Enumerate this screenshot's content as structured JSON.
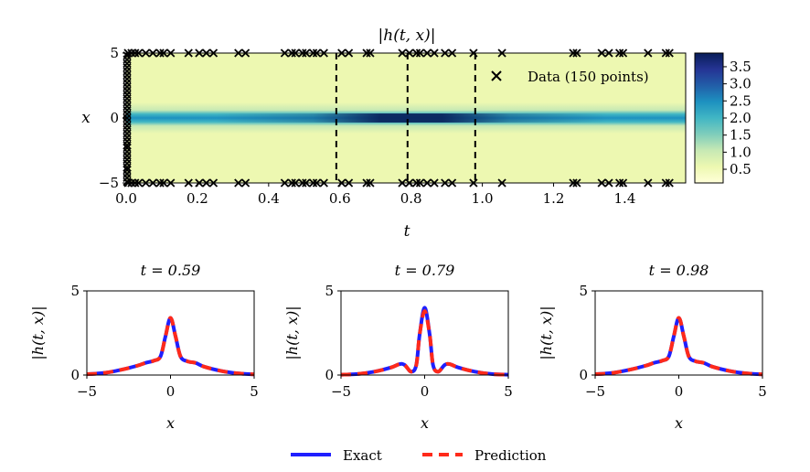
{
  "colors": {
    "exact": "#1f1fff",
    "prediction": "#ff2a1a",
    "cmap": [
      "#ffffd9",
      "#edf8b1",
      "#c7e9b4",
      "#7fcdbb",
      "#41b6c4",
      "#1d91c0",
      "#225ea8",
      "#253494",
      "#081d58"
    ]
  },
  "chart_data": [
    {
      "type": "heatmap",
      "title": "|h(t, x)|",
      "xlabel": "t",
      "ylabel": "x",
      "xlim": [
        0.0,
        1.5708
      ],
      "ylim": [
        -5,
        5
      ],
      "xticks": [
        "0.0",
        "0.2",
        "0.4",
        "0.6",
        "0.8",
        "1.0",
        "1.2",
        "1.4"
      ],
      "xtick_values": [
        0.0,
        0.2,
        0.4,
        0.6,
        0.8,
        1.0,
        1.2,
        1.4
      ],
      "yticks": [
        "−5",
        "0",
        "5"
      ],
      "ytick_values": [
        -5,
        0,
        5
      ],
      "colorbar": {
        "range": [
          0.1,
          3.9
        ],
        "ticks": [
          "0.5",
          "1.0",
          "1.5",
          "2.0",
          "2.5",
          "3.0",
          "3.5"
        ],
        "tick_values": [
          0.5,
          1.0,
          1.5,
          2.0,
          2.5,
          3.0,
          3.5
        ]
      },
      "slices_t": [
        0.59,
        0.79,
        0.98
      ],
      "legend": "Data (150 points)",
      "legend_position": "top-right",
      "data_points": {
        "initial_x": [
          -4.9,
          -4.6,
          -4.3,
          -4.0,
          -3.8,
          -3.5,
          -3.2,
          -2.9,
          -2.6,
          -2.3,
          -2.1,
          -1.8,
          -1.5,
          -1.2,
          -0.9,
          -0.6,
          -0.3,
          0.0,
          0.3,
          0.6,
          0.9,
          1.2,
          1.5,
          1.8,
          2.1,
          2.4,
          2.7,
          3.0,
          3.3,
          3.6,
          3.9,
          4.2,
          4.5,
          4.8
        ],
        "boundary_t": [
          0.0,
          0.01,
          0.02,
          0.03,
          0.05,
          0.07,
          0.09,
          0.1,
          0.12,
          0.17,
          0.2,
          0.22,
          0.24,
          0.31,
          0.33,
          0.44,
          0.46,
          0.47,
          0.49,
          0.5,
          0.52,
          0.53,
          0.55,
          0.6,
          0.62,
          0.67,
          0.68,
          0.77,
          0.79,
          0.81,
          0.82,
          0.84,
          0.86,
          0.89,
          0.91,
          0.97,
          1.05,
          1.25,
          1.26,
          1.33,
          1.35,
          1.38,
          1.39,
          1.46,
          1.51,
          1.52
        ]
      }
    },
    {
      "type": "line",
      "title": "t = 0.59",
      "xlabel": "x",
      "ylabel": "|h(t, x)|",
      "xlim": [
        -5,
        5
      ],
      "ylim": [
        0,
        5
      ],
      "xticks": [
        "−5",
        "0",
        "5"
      ],
      "yticks": [
        "0",
        "5"
      ],
      "series": [
        {
          "name": "Exact",
          "x": [
            -5,
            -4,
            -3,
            -2,
            -1.5,
            -1,
            -0.6,
            -0.3,
            0,
            0.3,
            0.6,
            1,
            1.5,
            2,
            3,
            4,
            5
          ],
          "values": [
            0.05,
            0.12,
            0.3,
            0.55,
            0.72,
            0.85,
            1.1,
            2.3,
            3.4,
            2.3,
            1.1,
            0.82,
            0.72,
            0.5,
            0.25,
            0.1,
            0.04
          ]
        },
        {
          "name": "Prediction",
          "x": [
            -5,
            -4,
            -3,
            -2,
            -1.5,
            -1,
            -0.6,
            -0.3,
            0,
            0.3,
            0.6,
            1,
            1.5,
            2,
            3,
            4,
            5
          ],
          "values": [
            0.05,
            0.12,
            0.3,
            0.55,
            0.72,
            0.85,
            1.1,
            2.3,
            3.4,
            2.3,
            1.1,
            0.82,
            0.72,
            0.5,
            0.25,
            0.1,
            0.04
          ]
        }
      ]
    },
    {
      "type": "line",
      "title": "t = 0.79",
      "xlabel": "x",
      "ylabel": "|h(t, x)|",
      "xlim": [
        -5,
        5
      ],
      "ylim": [
        0,
        5
      ],
      "xticks": [
        "−5",
        "0",
        "5"
      ],
      "yticks": [
        "0",
        "5"
      ],
      "series": [
        {
          "name": "Exact",
          "x": [
            -5,
            -4,
            -3,
            -2,
            -1.5,
            -1.2,
            -0.8,
            -0.5,
            -0.3,
            0,
            0.3,
            0.5,
            0.8,
            1.2,
            1.5,
            2,
            3,
            4,
            5
          ],
          "values": [
            0.02,
            0.06,
            0.2,
            0.45,
            0.65,
            0.6,
            0.2,
            0.6,
            2.4,
            4.0,
            2.4,
            0.6,
            0.2,
            0.6,
            0.65,
            0.45,
            0.2,
            0.06,
            0.02
          ]
        },
        {
          "name": "Prediction",
          "x": [
            -5,
            -4,
            -3,
            -2,
            -1.5,
            -1.2,
            -0.8,
            -0.5,
            -0.3,
            0,
            0.3,
            0.5,
            0.8,
            1.2,
            1.5,
            2,
            3,
            4,
            5
          ],
          "values": [
            0.02,
            0.06,
            0.2,
            0.45,
            0.65,
            0.6,
            0.2,
            0.6,
            2.4,
            3.8,
            2.4,
            0.6,
            0.2,
            0.6,
            0.65,
            0.45,
            0.2,
            0.06,
            0.02
          ]
        }
      ]
    },
    {
      "type": "line",
      "title": "t = 0.98",
      "xlabel": "x",
      "ylabel": "|h(t, x)|",
      "xlim": [
        -5,
        5
      ],
      "ylim": [
        0,
        5
      ],
      "xticks": [
        "−5",
        "0",
        "5"
      ],
      "yticks": [
        "0",
        "5"
      ],
      "series": [
        {
          "name": "Exact",
          "x": [
            -5,
            -4,
            -3,
            -2,
            -1.5,
            -1,
            -0.6,
            -0.3,
            0,
            0.3,
            0.6,
            1,
            1.5,
            2,
            3,
            4,
            5
          ],
          "values": [
            0.05,
            0.12,
            0.3,
            0.55,
            0.72,
            0.85,
            1.1,
            2.3,
            3.4,
            2.3,
            1.1,
            0.82,
            0.72,
            0.5,
            0.25,
            0.1,
            0.04
          ]
        },
        {
          "name": "Prediction",
          "x": [
            -5,
            -4,
            -3,
            -2,
            -1.5,
            -1,
            -0.6,
            -0.3,
            0,
            0.3,
            0.6,
            1,
            1.5,
            2,
            3,
            4,
            5
          ],
          "values": [
            0.05,
            0.12,
            0.3,
            0.55,
            0.72,
            0.85,
            1.1,
            2.3,
            3.4,
            2.3,
            1.1,
            0.82,
            0.72,
            0.5,
            0.25,
            0.1,
            0.04
          ]
        }
      ]
    }
  ],
  "legend": {
    "exact_label": "Exact",
    "prediction_label": "Prediction"
  }
}
